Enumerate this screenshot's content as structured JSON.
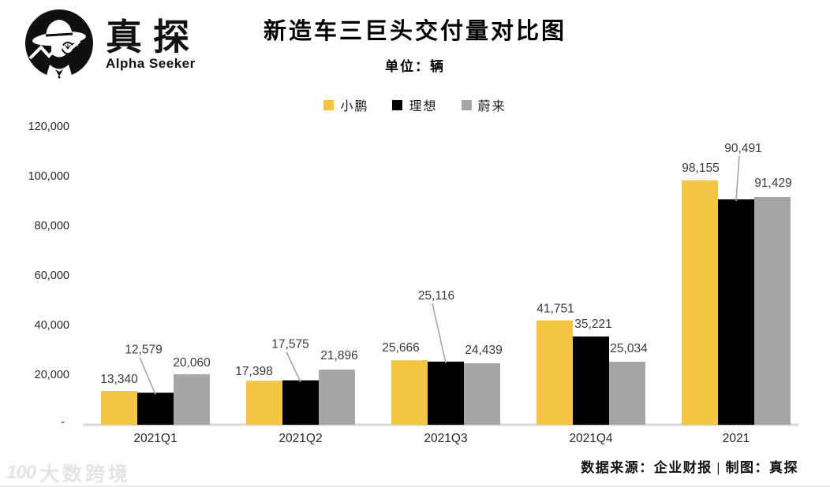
{
  "brand": {
    "name": "真探",
    "subtitle": "Alpha Seeker"
  },
  "header": {
    "title": "新造车三巨头交付量对比图",
    "subtitle": "单位：辆"
  },
  "footer": {
    "source": "数据来源：企业财报 | 制图：真探"
  },
  "watermark": {
    "icon_text": "100",
    "text": "大数跨境"
  },
  "colors": {
    "xpeng": "#F4C542",
    "lixiang": "#000000",
    "nio": "#A6A6A6",
    "axis_line": "#D9D9D9",
    "leader_line": "#A6A6A6",
    "label_text": "#3A3A3A"
  },
  "chart_data": {
    "type": "bar",
    "title": "新造车三巨头交付量对比图",
    "unit_label": "单位：辆",
    "categories": [
      "2021Q1",
      "2021Q2",
      "2021Q3",
      "2021Q4",
      "2021"
    ],
    "series": [
      {
        "name": "小鹏",
        "color": "#F4C542",
        "values": [
          13340,
          17398,
          25666,
          41751,
          98155
        ]
      },
      {
        "name": "理想",
        "color": "#000000",
        "values": [
          12579,
          17575,
          25116,
          35221,
          90491
        ]
      },
      {
        "name": "蔚来",
        "color": "#A6A6A6",
        "values": [
          20060,
          21896,
          24439,
          25034,
          91429
        ]
      }
    ],
    "ylim": [
      0,
      120000
    ],
    "y_ticks": [
      "120,000",
      "100,000",
      "80,000",
      "60,000",
      "40,000",
      "20,000",
      "-"
    ],
    "grid": false,
    "legend_position": "top",
    "layout_hints": {
      "label_offsets": [
        [
          {
            "dx": 0,
            "lift": 10
          },
          {
            "dx": -15,
            "lift": 50,
            "leader": true
          },
          {
            "dx": 0,
            "lift": 10
          }
        ],
        [
          {
            "dx": -13,
            "lift": 7
          },
          {
            "dx": -13,
            "lift": 41,
            "leader": true
          },
          {
            "dx": 3,
            "lift": 13
          }
        ],
        [
          {
            "dx": -11,
            "lift": 11
          },
          {
            "dx": -12,
            "lift": 79,
            "leader": true
          },
          {
            "dx": 2,
            "lift": 12
          }
        ],
        [
          {
            "dx": 1,
            "lift": 10
          },
          {
            "dx": 3,
            "lift": 11
          },
          {
            "dx": 2,
            "lift": 12
          }
        ],
        [
          {
            "dx": 1,
            "lift": 11
          },
          {
            "dx": 9,
            "lift": 60,
            "leader": true
          },
          {
            "dx": 1,
            "lift": 13
          }
        ]
      ]
    }
  }
}
